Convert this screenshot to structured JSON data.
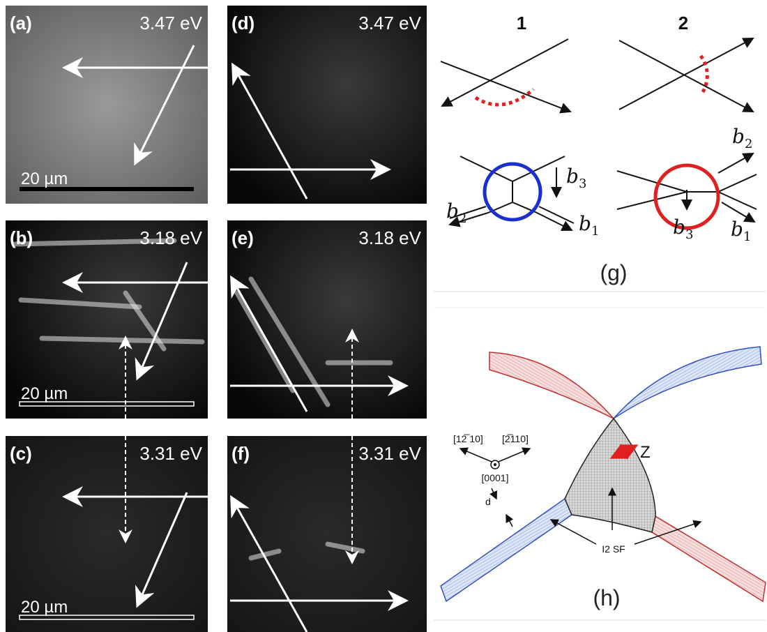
{
  "panels": [
    {
      "label": "(a)",
      "energy": "3.47 eV",
      "scale_bar": "20 µm"
    },
    {
      "label": "(b)",
      "energy": "3.18 eV",
      "scale_bar": "20 µm"
    },
    {
      "label": "(c)",
      "energy": "3.31 eV",
      "scale_bar": "20 µm"
    },
    {
      "label": "(d)",
      "energy": "3.47 eV"
    },
    {
      "label": "(e)",
      "energy": "3.18 eV"
    },
    {
      "label": "(f)",
      "energy": "3.31 eV"
    }
  ],
  "panel_g": {
    "label": "(g)",
    "columns": [
      "1",
      "2"
    ],
    "vectors_1": [
      {
        "symbol": "b",
        "subscript": "3"
      },
      {
        "symbol": "b",
        "subscript": "2"
      },
      {
        "symbol": "b",
        "subscript": "1"
      }
    ],
    "vectors_2": [
      {
        "symbol": "b",
        "subscript": "2"
      },
      {
        "symbol": "b",
        "subscript": "3"
      },
      {
        "symbol": "b",
        "subscript": "1"
      }
    ]
  },
  "panel_h": {
    "label": "(h)",
    "directions": [
      "[12̅ 10]",
      "[2̅110]",
      "[0001]"
    ],
    "z": "Z",
    "d": "d",
    "fault": "I2 SF"
  }
}
